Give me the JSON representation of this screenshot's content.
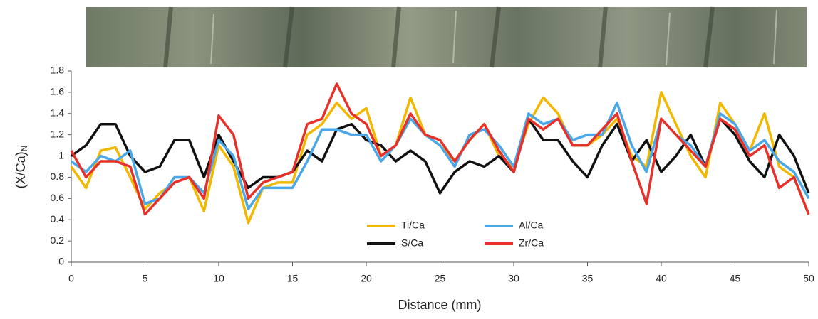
{
  "chart_data": {
    "type": "line",
    "x_label": "Distance (mm)",
    "y_label": "(X/Ca)",
    "y_label_subscript": "N",
    "x": [
      0,
      1,
      2,
      3,
      4,
      5,
      6,
      7,
      8,
      9,
      10,
      11,
      12,
      13,
      14,
      15,
      16,
      17,
      18,
      19,
      20,
      21,
      22,
      23,
      24,
      25,
      26,
      27,
      28,
      29,
      30,
      31,
      32,
      33,
      34,
      35,
      36,
      37,
      38,
      39,
      40,
      41,
      42,
      43,
      44,
      45,
      46,
      47,
      48,
      49,
      50
    ],
    "xlim": [
      0,
      50
    ],
    "xticks": [
      0,
      5,
      10,
      15,
      20,
      25,
      30,
      35,
      40,
      45,
      50
    ],
    "ylim": [
      0,
      1.8
    ],
    "yticks": [
      0,
      0.2,
      0.4,
      0.6,
      0.8,
      1,
      1.2,
      1.4,
      1.6,
      1.8
    ],
    "series": [
      {
        "name": "Ti/Ca",
        "color": "#f2b800",
        "values": [
          0.9,
          0.7,
          1.05,
          1.08,
          0.8,
          0.5,
          0.65,
          0.75,
          0.8,
          0.48,
          1.1,
          0.9,
          0.37,
          0.7,
          0.75,
          0.75,
          1.2,
          1.3,
          1.5,
          1.35,
          1.45,
          1.0,
          1.1,
          1.55,
          1.2,
          1.1,
          0.95,
          1.15,
          1.3,
          1.0,
          0.9,
          1.3,
          1.55,
          1.4,
          1.1,
          1.1,
          1.2,
          1.35,
          1.0,
          0.9,
          1.6,
          1.3,
          1.0,
          0.8,
          1.5,
          1.3,
          1.05,
          1.4,
          0.9,
          0.8,
          0.45
        ]
      },
      {
        "name": "S/Ca",
        "color": "#111111",
        "values": [
          1.0,
          1.1,
          1.3,
          1.3,
          1.0,
          0.85,
          0.9,
          1.15,
          1.15,
          0.8,
          1.2,
          0.95,
          0.7,
          0.8,
          0.8,
          0.85,
          1.05,
          0.95,
          1.25,
          1.3,
          1.15,
          1.1,
          0.95,
          1.05,
          0.95,
          0.65,
          0.85,
          0.95,
          0.9,
          1.0,
          0.85,
          1.35,
          1.15,
          1.15,
          0.95,
          0.8,
          1.1,
          1.3,
          0.95,
          1.15,
          0.85,
          1.0,
          1.2,
          0.9,
          1.35,
          1.2,
          0.95,
          0.8,
          1.2,
          1.0,
          0.65
        ]
      },
      {
        "name": "Al/Ca",
        "color": "#4aa8e8",
        "values": [
          0.95,
          0.85,
          1.0,
          0.95,
          1.05,
          0.55,
          0.6,
          0.8,
          0.8,
          0.65,
          1.15,
          1.0,
          0.5,
          0.7,
          0.7,
          0.7,
          0.95,
          1.25,
          1.25,
          1.2,
          1.2,
          0.95,
          1.1,
          1.35,
          1.2,
          1.1,
          0.9,
          1.2,
          1.25,
          1.1,
          0.9,
          1.4,
          1.3,
          1.35,
          1.15,
          1.2,
          1.2,
          1.5,
          1.1,
          0.85,
          1.35,
          1.2,
          1.1,
          0.9,
          1.4,
          1.3,
          1.05,
          1.15,
          0.95,
          0.85,
          0.6
        ]
      },
      {
        "name": "Zr/Ca",
        "color": "#e8302a",
        "values": [
          1.05,
          0.8,
          0.95,
          0.95,
          0.9,
          0.45,
          0.6,
          0.75,
          0.8,
          0.6,
          1.38,
          1.2,
          0.6,
          0.75,
          0.8,
          0.85,
          1.3,
          1.35,
          1.68,
          1.4,
          1.3,
          1.0,
          1.1,
          1.4,
          1.2,
          1.15,
          0.95,
          1.15,
          1.3,
          1.05,
          0.85,
          1.35,
          1.25,
          1.35,
          1.1,
          1.1,
          1.25,
          1.4,
          0.95,
          0.55,
          1.35,
          1.2,
          1.05,
          0.9,
          1.35,
          1.25,
          1.0,
          1.1,
          0.7,
          0.8,
          0.45
        ]
      }
    ]
  }
}
